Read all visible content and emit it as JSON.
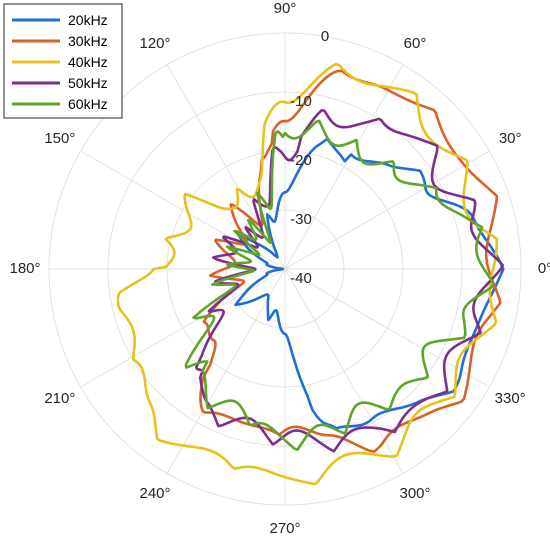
{
  "chart_data": {
    "type": "line",
    "subtype": "polar",
    "theta_direction": "counterclockwise",
    "theta_zero": "right",
    "r_ticks": [
      "0",
      "-10",
      "-20",
      "-30",
      "-40"
    ],
    "rlim": [
      -40,
      0
    ],
    "theta_ticks": [
      "0°",
      "30°",
      "60°",
      "90°",
      "120°",
      "150°",
      "180°",
      "210°",
      "240°",
      "270°",
      "300°",
      "330°"
    ],
    "grid": true,
    "legend": {
      "placement": "top-left"
    },
    "series": [
      {
        "name": "20kHz",
        "color": "#1f6fd6",
        "points": [
          [
            0,
            -3
          ],
          [
            15,
            -4
          ],
          [
            30,
            -11
          ],
          [
            45,
            -13
          ],
          [
            60,
            -15
          ],
          [
            75,
            -17
          ],
          [
            90,
            -22
          ],
          [
            105,
            -30
          ],
          [
            120,
            -33
          ],
          [
            135,
            -31
          ],
          [
            150,
            -30
          ],
          [
            165,
            -32
          ],
          [
            180,
            -39
          ],
          [
            195,
            -32
          ],
          [
            210,
            -30
          ],
          [
            225,
            -29
          ],
          [
            240,
            -30
          ],
          [
            255,
            -31
          ],
          [
            270,
            -24
          ],
          [
            285,
            -12
          ],
          [
            300,
            -8
          ],
          [
            315,
            -6
          ],
          [
            330,
            -4
          ],
          [
            345,
            -3
          ],
          [
            360,
            -3
          ]
        ]
      },
      {
        "name": "30kHz",
        "color": "#d9622b",
        "points": [
          [
            0,
            -3
          ],
          [
            15,
            -2
          ],
          [
            30,
            -2
          ],
          [
            45,
            -3
          ],
          [
            60,
            -2
          ],
          [
            75,
            -5
          ],
          [
            90,
            -12
          ],
          [
            105,
            -22
          ],
          [
            120,
            -27
          ],
          [
            135,
            -25
          ],
          [
            150,
            -28
          ],
          [
            165,
            -26
          ],
          [
            180,
            -27
          ],
          [
            195,
            -28
          ],
          [
            210,
            -24
          ],
          [
            225,
            -18
          ],
          [
            240,
            -12
          ],
          [
            255,
            -10
          ],
          [
            270,
            -12
          ],
          [
            285,
            -8
          ],
          [
            300,
            -5
          ],
          [
            315,
            -3
          ],
          [
            330,
            -2
          ],
          [
            345,
            -3
          ],
          [
            360,
            -3
          ]
        ]
      },
      {
        "name": "40kHz",
        "color": "#e6c21a",
        "points": [
          [
            0,
            -2
          ],
          [
            15,
            -5
          ],
          [
            30,
            -4
          ],
          [
            45,
            -4
          ],
          [
            60,
            -2
          ],
          [
            75,
            -4
          ],
          [
            90,
            -9
          ],
          [
            105,
            -20
          ],
          [
            120,
            -24
          ],
          [
            135,
            -21
          ],
          [
            150,
            -17
          ],
          [
            165,
            -19
          ],
          [
            180,
            -15
          ],
          [
            195,
            -9
          ],
          [
            210,
            -10
          ],
          [
            225,
            -5
          ],
          [
            240,
            -3
          ],
          [
            255,
            -5
          ],
          [
            270,
            -2
          ],
          [
            285,
            -4
          ],
          [
            300,
            -3
          ],
          [
            315,
            -4
          ],
          [
            330,
            -4
          ],
          [
            345,
            -3
          ],
          [
            360,
            -2
          ]
        ]
      },
      {
        "name": "50kHz",
        "color": "#7e2f8e",
        "points": [
          [
            0,
            -3
          ],
          [
            15,
            -5
          ],
          [
            30,
            -8
          ],
          [
            45,
            -6
          ],
          [
            60,
            -10
          ],
          [
            75,
            -12
          ],
          [
            90,
            -17
          ],
          [
            105,
            -24
          ],
          [
            120,
            -28
          ],
          [
            135,
            -30
          ],
          [
            150,
            -28
          ],
          [
            165,
            -26
          ],
          [
            180,
            -30
          ],
          [
            195,
            -27
          ],
          [
            210,
            -25
          ],
          [
            225,
            -18
          ],
          [
            240,
            -11
          ],
          [
            255,
            -11
          ],
          [
            270,
            -10
          ],
          [
            285,
            -8
          ],
          [
            300,
            -7
          ],
          [
            315,
            -5
          ],
          [
            330,
            -6
          ],
          [
            345,
            -5
          ],
          [
            360,
            -3
          ]
        ]
      },
      {
        "name": "60kHz",
        "color": "#5ea52a",
        "points": [
          [
            0,
            -4
          ],
          [
            15,
            -6
          ],
          [
            30,
            -11
          ],
          [
            45,
            -14
          ],
          [
            60,
            -15
          ],
          [
            75,
            -14
          ],
          [
            90,
            -15
          ],
          [
            105,
            -25
          ],
          [
            120,
            -30
          ],
          [
            135,
            -28
          ],
          [
            150,
            -30
          ],
          [
            165,
            -29
          ],
          [
            180,
            -30
          ],
          [
            195,
            -27
          ],
          [
            210,
            -22
          ],
          [
            225,
            -16
          ],
          [
            240,
            -13
          ],
          [
            255,
            -13
          ],
          [
            270,
            -9
          ],
          [
            285,
            -10
          ],
          [
            300,
            -11
          ],
          [
            315,
            -9
          ],
          [
            330,
            -10
          ],
          [
            345,
            -6
          ],
          [
            360,
            -4
          ]
        ]
      }
    ]
  }
}
